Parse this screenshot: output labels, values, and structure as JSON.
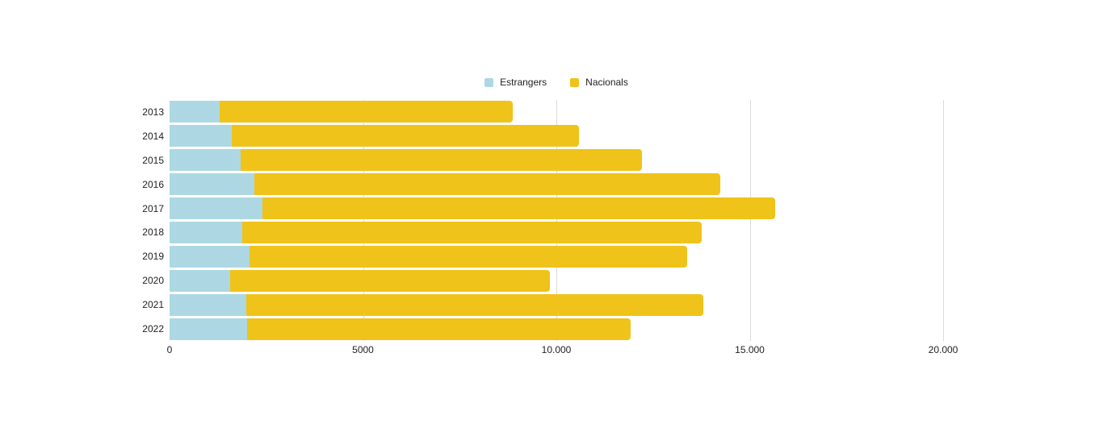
{
  "chart_data": {
    "type": "bar",
    "orientation": "horizontal",
    "stacked": true,
    "title": "",
    "xlabel": "",
    "ylabel": "",
    "categories": [
      "2013",
      "2014",
      "2015",
      "2016",
      "2017",
      "2018",
      "2019",
      "2020",
      "2021",
      "2022"
    ],
    "series": [
      {
        "name": "Estrangers",
        "color": "#ADD8E3",
        "values": [
          1285,
          1610,
          1835,
          2195,
          2410,
          1880,
          2070,
          1560,
          1985,
          2000
        ]
      },
      {
        "name": "Nacionals",
        "color": "#EFC319",
        "values": [
          7595,
          8980,
          10375,
          12035,
          13240,
          11880,
          11310,
          8280,
          11805,
          9930
        ]
      }
    ],
    "totals": [
      8880,
      10590,
      12210,
      14230,
      15650,
      13760,
      13380,
      9840,
      13790,
      11930
    ],
    "xlim": [
      0,
      20000
    ],
    "x_tick_values": [
      0,
      5000,
      10000,
      15000,
      20000
    ],
    "x_tick_labels": [
      "0",
      "5000",
      "10.000",
      "15.000",
      "20.000"
    ],
    "grid": "vertical-only",
    "legend_position": "top-center"
  },
  "legend": {
    "items": [
      {
        "label": "Estrangers",
        "color": "#ADD8E3"
      },
      {
        "label": "Nacionals",
        "color": "#EFC319"
      }
    ]
  },
  "colors": {
    "background": "#ffffff",
    "gridline": "#dadada",
    "text": "#222222"
  }
}
